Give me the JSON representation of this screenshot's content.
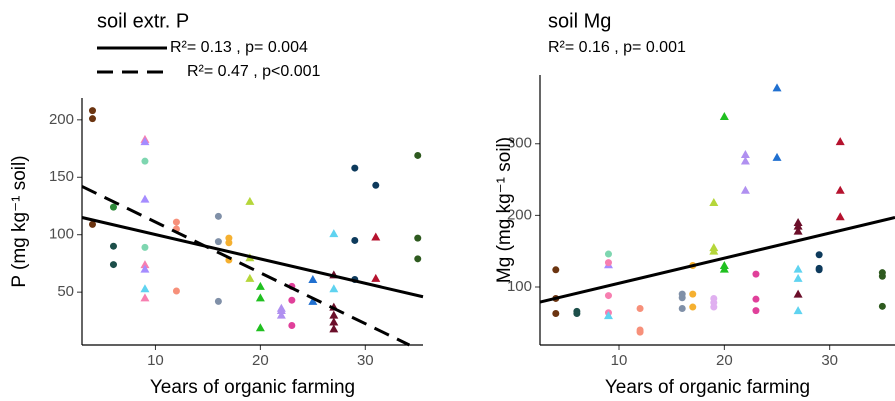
{
  "chart_data": [
    {
      "type": "scatter",
      "title": "soil extr. P",
      "xlabel": "Years of organic farming",
      "ylabel": "P (mg kg⁻¹ soil)",
      "xlim": [
        3,
        35.5
      ],
      "ylim": [
        4,
        219
      ],
      "xticks": [
        10,
        20,
        30
      ],
      "yticks": [
        50,
        100,
        150,
        200
      ],
      "lines": [
        {
          "name": "R²= 0.13 , p= 0.004",
          "x": [
            3,
            35.5
          ],
          "values": [
            115,
            46
          ],
          "dashed": false
        },
        {
          "name": "R²= 0.47 , p<0.001",
          "x": [
            3,
            34.2
          ],
          "values": [
            142,
            4
          ],
          "dashed": true
        }
      ],
      "series": [
        {
          "color": "#6b3410",
          "shape": "circle",
          "x": [
            4,
            4,
            4
          ],
          "values": [
            208,
            201,
            109
          ]
        },
        {
          "color": "#1d4f4a",
          "shape": "circle",
          "x": [
            6,
            6
          ],
          "values": [
            90,
            74
          ]
        },
        {
          "color": "#2e8a3a",
          "shape": "circle",
          "x": [
            6
          ],
          "values": [
            124
          ]
        },
        {
          "color": "#f77fb0",
          "shape": "triangle",
          "x": [
            9,
            9,
            9
          ],
          "values": [
            183,
            74,
            45
          ]
        },
        {
          "color": "#a58cff",
          "shape": "triangle",
          "x": [
            9,
            9,
            9
          ],
          "values": [
            131,
            70,
            181
          ]
        },
        {
          "color": "#5fd3f0",
          "shape": "triangle",
          "x": [
            9
          ],
          "values": [
            53
          ]
        },
        {
          "color": "#7ed6b0",
          "shape": "circle",
          "x": [
            9,
            9
          ],
          "values": [
            164,
            89
          ]
        },
        {
          "color": "#f7907a",
          "shape": "circle",
          "x": [
            12,
            12,
            12
          ],
          "values": [
            111,
            105,
            51
          ]
        },
        {
          "color": "#8090a8",
          "shape": "circle",
          "x": [
            16,
            16,
            16
          ],
          "values": [
            116,
            94,
            42
          ]
        },
        {
          "color": "#f5b030",
          "shape": "circle",
          "x": [
            17,
            17,
            17
          ],
          "values": [
            97,
            93,
            78
          ]
        },
        {
          "color": "#b5d63a",
          "shape": "triangle",
          "x": [
            19,
            19,
            19
          ],
          "values": [
            129,
            80,
            62
          ]
        },
        {
          "color": "#20c020",
          "shape": "triangle",
          "x": [
            20,
            20,
            20
          ],
          "values": [
            55,
            45,
            19
          ]
        },
        {
          "color": "#b090f0",
          "shape": "triangle",
          "x": [
            22,
            22,
            22
          ],
          "values": [
            36,
            34,
            30
          ]
        },
        {
          "color": "#e0409a",
          "shape": "circle",
          "x": [
            23,
            23,
            23
          ],
          "values": [
            55,
            43,
            21
          ]
        },
        {
          "color": "#2070d0",
          "shape": "triangle",
          "x": [
            25,
            25
          ],
          "values": [
            61,
            42
          ]
        },
        {
          "color": "#5fd3f0",
          "shape": "triangle",
          "x": [
            27,
            27
          ],
          "values": [
            101,
            53
          ]
        },
        {
          "color": "#6b0f2a",
          "shape": "triangle",
          "x": [
            27,
            27,
            27,
            27,
            27
          ],
          "values": [
            65,
            37,
            30,
            24,
            18
          ]
        },
        {
          "color": "#0d3a5c",
          "shape": "circle",
          "x": [
            29,
            29,
            29,
            31
          ],
          "values": [
            158,
            95,
            61,
            143
          ]
        },
        {
          "color": "#b5122e",
          "shape": "triangle",
          "x": [
            31,
            31
          ],
          "values": [
            98,
            62
          ]
        },
        {
          "color": "#2e5a1f",
          "shape": "circle",
          "x": [
            35,
            35,
            35
          ],
          "values": [
            169,
            97,
            79
          ]
        }
      ]
    },
    {
      "type": "scatter",
      "title": "soil Mg",
      "subtitle": "R²= 0.16 , p= 0.001",
      "xlabel": "Years of organic farming",
      "ylabel": "Mg (mg kg⁻¹ soil)",
      "xlim": [
        2.5,
        36.2
      ],
      "ylim": [
        19,
        396
      ],
      "xticks": [
        10,
        20,
        30
      ],
      "yticks": [
        100,
        200,
        300
      ],
      "lines": [
        {
          "x": [
            2.5,
            36.2
          ],
          "values": [
            79,
            197
          ],
          "dashed": false
        }
      ],
      "series": [
        {
          "color": "#6b3410",
          "shape": "circle",
          "x": [
            4,
            4,
            4
          ],
          "values": [
            124,
            84,
            63
          ]
        },
        {
          "color": "#1d4f4a",
          "shape": "circle",
          "x": [
            6,
            6
          ],
          "values": [
            66,
            63
          ]
        },
        {
          "color": "#7ed6b0",
          "shape": "circle",
          "x": [
            9
          ],
          "values": [
            146
          ]
        },
        {
          "color": "#a58cff",
          "shape": "triangle",
          "x": [
            9
          ],
          "values": [
            131
          ]
        },
        {
          "color": "#f77fb0",
          "shape": "circle",
          "x": [
            9,
            9,
            9
          ],
          "values": [
            134,
            88,
            64
          ]
        },
        {
          "color": "#5fd3f0",
          "shape": "triangle",
          "x": [
            9
          ],
          "values": [
            60
          ]
        },
        {
          "color": "#f7907a",
          "shape": "circle",
          "x": [
            12,
            12,
            12
          ],
          "values": [
            70,
            40,
            37
          ]
        },
        {
          "color": "#8090a8",
          "shape": "circle",
          "x": [
            16,
            16,
            16
          ],
          "values": [
            90,
            85,
            70
          ]
        },
        {
          "color": "#f5b030",
          "shape": "circle",
          "x": [
            17,
            17,
            17
          ],
          "values": [
            130,
            90,
            72
          ]
        },
        {
          "color": "#b5d63a",
          "shape": "triangle",
          "x": [
            19,
            19,
            19
          ],
          "values": [
            218,
            155,
            150
          ]
        },
        {
          "color": "#e0b0f0",
          "shape": "circle",
          "x": [
            19,
            19,
            19
          ],
          "values": [
            84,
            78,
            72
          ]
        },
        {
          "color": "#20c020",
          "shape": "triangle",
          "x": [
            20,
            20,
            20
          ],
          "values": [
            338,
            130,
            125
          ]
        },
        {
          "color": "#b090f0",
          "shape": "triangle",
          "x": [
            22,
            22,
            22
          ],
          "values": [
            285,
            276,
            235
          ]
        },
        {
          "color": "#e0409a",
          "shape": "circle",
          "x": [
            23,
            23,
            23
          ],
          "values": [
            118,
            83,
            67
          ]
        },
        {
          "color": "#2070d0",
          "shape": "triangle",
          "x": [
            25,
            25
          ],
          "values": [
            378,
            281
          ]
        },
        {
          "color": "#6b0f2a",
          "shape": "triangle",
          "x": [
            27,
            27,
            27,
            27
          ],
          "values": [
            190,
            185,
            178,
            90
          ]
        },
        {
          "color": "#5fd3f0",
          "shape": "triangle",
          "x": [
            27,
            27,
            27
          ],
          "values": [
            125,
            112,
            67
          ]
        },
        {
          "color": "#0d3a5c",
          "shape": "circle",
          "x": [
            29,
            29,
            29
          ],
          "values": [
            145,
            126,
            124
          ]
        },
        {
          "color": "#b5122e",
          "shape": "triangle",
          "x": [
            31,
            31,
            31
          ],
          "values": [
            303,
            235,
            198
          ]
        },
        {
          "color": "#2e5a1f",
          "shape": "circle",
          "x": [
            35,
            35,
            35
          ],
          "values": [
            120,
            115,
            73
          ]
        }
      ]
    }
  ]
}
